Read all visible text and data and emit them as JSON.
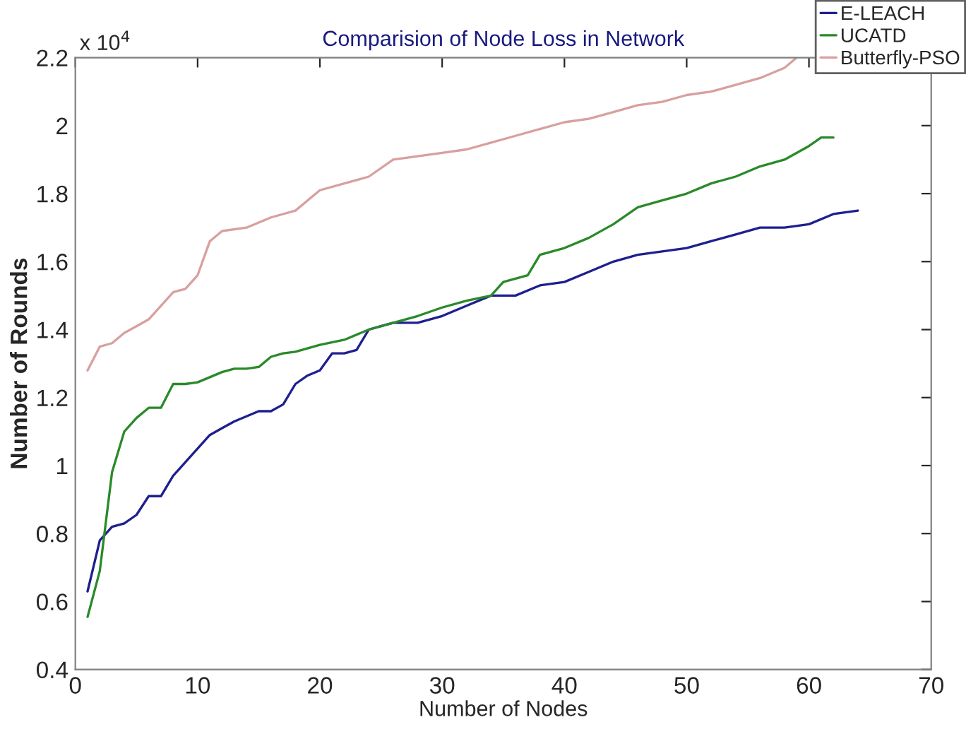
{
  "chart_data": {
    "type": "line",
    "title": "Comparision of Node Loss in Network",
    "xlabel": "Number of Nodes",
    "ylabel": "Number of Rounds",
    "annotations": [
      "x 10$^{4}$"
    ],
    "xlim": [
      0,
      70
    ],
    "xticks": [
      0,
      10,
      20,
      30,
      40,
      50,
      60,
      70
    ],
    "ylim": [
      0.4,
      2.2
    ],
    "yticks": [
      0.4,
      0.6,
      0.8,
      1,
      1.2,
      1.4,
      1.6,
      1.8,
      2,
      2.2
    ],
    "grid": false,
    "legend": "top right",
    "line_style": "solid",
    "marker": "none",
    "series": [
      {
        "name": "E-LEACH",
        "color": "#1f1f8f",
        "x": [
          1,
          2,
          3,
          4,
          5,
          6,
          7,
          8,
          9,
          10,
          11,
          12,
          13,
          14,
          15,
          16,
          17,
          18,
          19,
          20,
          21,
          22,
          23,
          24,
          25,
          26,
          28,
          30,
          32,
          34,
          36,
          38,
          40,
          42,
          44,
          46,
          48,
          50,
          52,
          54,
          56,
          58,
          60,
          62,
          64
        ],
        "values": [
          0.63,
          0.78,
          0.82,
          0.83,
          0.855,
          0.91,
          0.91,
          0.97,
          1.01,
          1.05,
          1.09,
          1.11,
          1.13,
          1.145,
          1.16,
          1.16,
          1.18,
          1.24,
          1.265,
          1.28,
          1.33,
          1.33,
          1.34,
          1.4,
          1.41,
          1.42,
          1.42,
          1.44,
          1.47,
          1.5,
          1.5,
          1.53,
          1.54,
          1.57,
          1.6,
          1.62,
          1.63,
          1.64,
          1.66,
          1.68,
          1.7,
          1.7,
          1.71,
          1.74,
          1.75
        ]
      },
      {
        "name": "UCATD",
        "color": "#2a8a2a",
        "x": [
          1,
          2,
          3,
          4,
          5,
          6,
          7,
          8,
          9,
          10,
          11,
          12,
          13,
          14,
          15,
          16,
          17,
          18,
          20,
          22,
          24,
          26,
          28,
          30,
          32,
          34,
          35,
          37,
          38,
          40,
          42,
          44,
          46,
          48,
          50,
          52,
          54,
          56,
          58,
          60,
          61,
          62
        ],
        "values": [
          0.555,
          0.69,
          0.98,
          1.1,
          1.14,
          1.17,
          1.17,
          1.24,
          1.24,
          1.245,
          1.26,
          1.275,
          1.285,
          1.285,
          1.29,
          1.32,
          1.33,
          1.335,
          1.355,
          1.37,
          1.4,
          1.42,
          1.44,
          1.465,
          1.485,
          1.5,
          1.54,
          1.56,
          1.62,
          1.64,
          1.67,
          1.71,
          1.76,
          1.78,
          1.8,
          1.83,
          1.85,
          1.88,
          1.9,
          1.94,
          1.965,
          1.965
        ]
      },
      {
        "name": "Butterfly-PSO",
        "color": "#d8a0a0",
        "x": [
          1,
          2,
          3,
          4,
          5,
          6,
          7,
          8,
          9,
          10,
          11,
          12,
          14,
          16,
          18,
          20,
          22,
          24,
          26,
          28,
          30,
          32,
          34,
          36,
          38,
          40,
          42,
          44,
          46,
          48,
          50,
          52,
          54,
          56,
          58,
          59
        ],
        "values": [
          1.28,
          1.35,
          1.36,
          1.39,
          1.41,
          1.43,
          1.47,
          1.51,
          1.52,
          1.56,
          1.66,
          1.69,
          1.7,
          1.73,
          1.75,
          1.81,
          1.83,
          1.85,
          1.9,
          1.91,
          1.92,
          1.93,
          1.95,
          1.97,
          1.99,
          2.01,
          2.02,
          2.04,
          2.06,
          2.07,
          2.09,
          2.1,
          2.12,
          2.14,
          2.17,
          2.2
        ]
      }
    ]
  }
}
